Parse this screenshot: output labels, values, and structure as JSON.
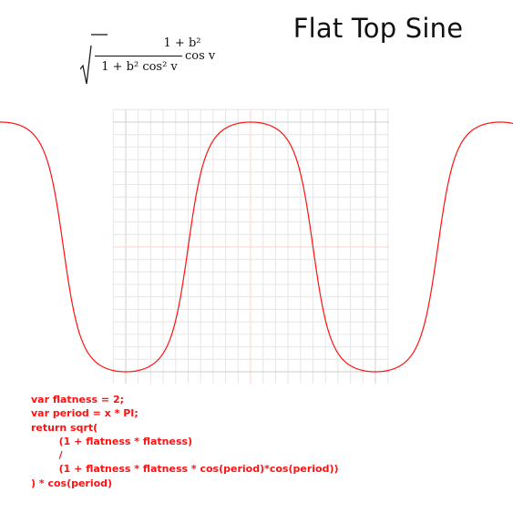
{
  "title": "Flat Top Sine",
  "formula": {
    "numerator": "1 + b²",
    "denominator": "1 + b² cos² v",
    "trailing": "cos v"
  },
  "colors": {
    "curve": "#ff1111",
    "grid_minor": "#e6e6e6",
    "grid_major": "#cfcfcf",
    "grid_axis": "#ffd0d0",
    "code": "#ff1111"
  },
  "chart_data": {
    "type": "line",
    "function": "sqrt((1 + flatness*flatness) / (1 + flatness*flatness*cos(x*PI)*cos(x*PI))) * cos(x*PI)",
    "flatness": 2,
    "xlim": [
      -2.5,
      2.5
    ],
    "ylim": [
      -1,
      1
    ],
    "series": [
      {
        "name": "",
        "points": 200
      }
    ],
    "grid": true,
    "title": "",
    "xlabel": "",
    "ylabel": ""
  },
  "code_lines": [
    "var flatness = 2;",
    "var period = x * PI;",
    "return sqrt(",
    "        (1 + flatness * flatness)",
    "        /",
    "        (1 + flatness * flatness * cos(period)*cos(period))",
    ") * cos(period)"
  ]
}
